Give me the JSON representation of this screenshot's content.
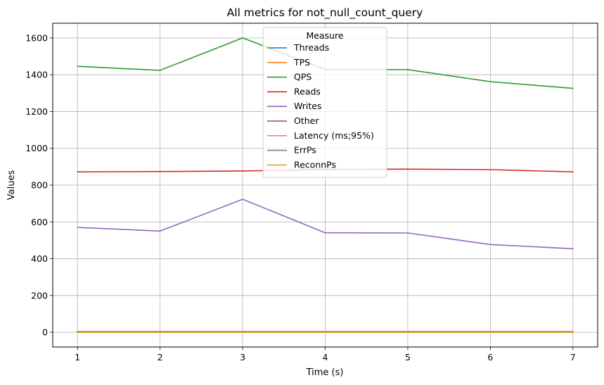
{
  "chart_data": {
    "type": "line",
    "title": "All metrics for not_null_count_query",
    "xlabel": "Time (s)",
    "ylabel": "Values",
    "x": [
      1,
      2,
      3,
      4,
      5,
      6,
      7
    ],
    "xlim": [
      0.7,
      7.3
    ],
    "ylim": [
      -80,
      1680
    ],
    "xticks": [
      1,
      2,
      3,
      4,
      5,
      6,
      7
    ],
    "yticks": [
      0,
      200,
      400,
      600,
      800,
      1000,
      1200,
      1400,
      1600
    ],
    "grid": true,
    "legend": {
      "title": "Measure",
      "placement": "upper center"
    },
    "series": [
      {
        "name": "Threads",
        "color": "#1f77b4",
        "values": [
          4,
          4,
          4,
          4,
          4,
          4,
          4
        ]
      },
      {
        "name": "TPS",
        "color": "#ff7f0e",
        "values": [
          5,
          5,
          5,
          5,
          5,
          5,
          5
        ]
      },
      {
        "name": "QPS",
        "color": "#2ca02c",
        "values": [
          1446,
          1424,
          1600,
          1428,
          1428,
          1362,
          1326
        ]
      },
      {
        "name": "Reads",
        "color": "#d62728",
        "values": [
          872,
          874,
          877,
          885,
          887,
          884,
          872
        ]
      },
      {
        "name": "Writes",
        "color": "#9467bd",
        "values": [
          570,
          550,
          723,
          541,
          540,
          477,
          454
        ]
      },
      {
        "name": "Other",
        "color": "#8c564b",
        "values": [
          2,
          2,
          2,
          2,
          2,
          2,
          2
        ]
      },
      {
        "name": "Latency (ms;95%)",
        "color": "#e377c2",
        "values": [
          3,
          3,
          3,
          3,
          3,
          3,
          3
        ]
      },
      {
        "name": "ErrPs",
        "color": "#7f7f7f",
        "values": [
          0,
          0,
          0,
          0,
          0,
          0,
          0
        ]
      },
      {
        "name": "ReconnPs",
        "color": "#dba520",
        "values": [
          0,
          0,
          0,
          0,
          0,
          0,
          0
        ]
      }
    ]
  }
}
